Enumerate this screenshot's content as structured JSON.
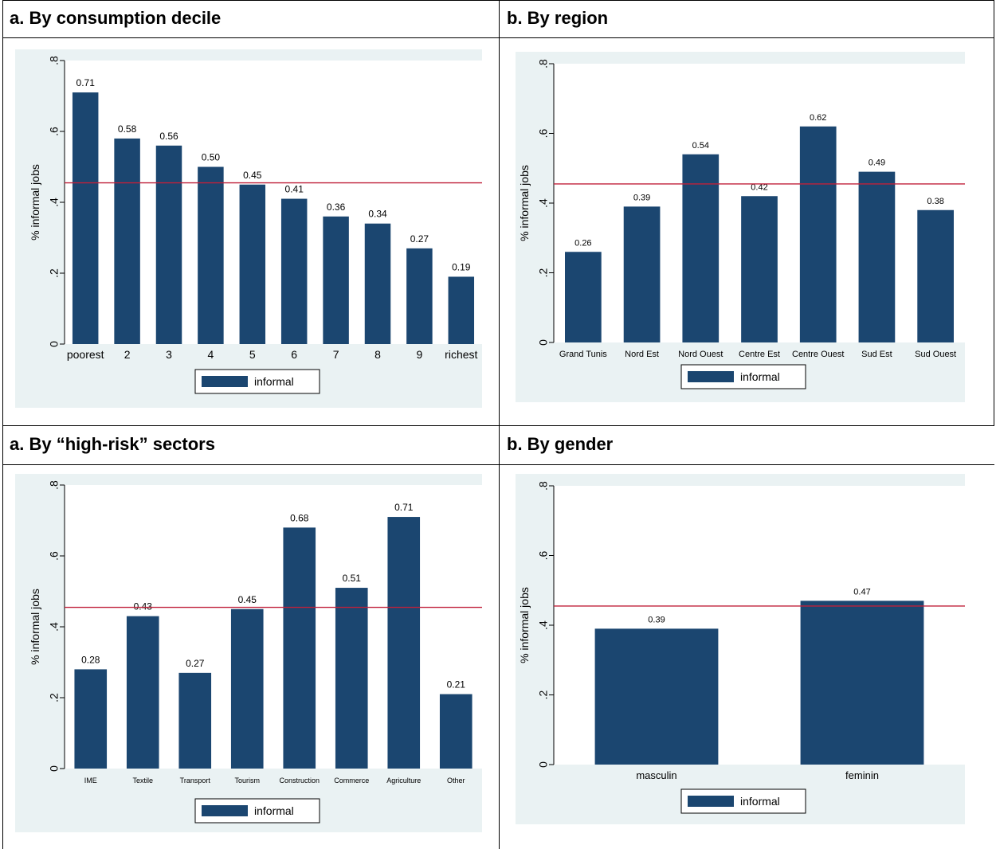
{
  "panels": [
    {
      "title": "a. By consumption decile"
    },
    {
      "title": "b. By region"
    },
    {
      "title": "a. By “high-risk” sectors"
    },
    {
      "title": "b. By gender"
    }
  ],
  "colors": {
    "bar": "#1b4670",
    "refline": "#c0203a",
    "chart_bg": "#eaf2f3",
    "plot_bg": "#ffffff"
  },
  "chart_data": [
    {
      "type": "bar",
      "ylabel": "% informal jobs",
      "ylim": [
        0,
        0.8
      ],
      "yticks": [
        0,
        0.2,
        0.4,
        0.6,
        0.8
      ],
      "ytick_labels": [
        "0",
        ".2",
        ".4",
        ".6",
        ".8"
      ],
      "reference_line": 0.455,
      "categories": [
        "poorest",
        "2",
        "3",
        "4",
        "5",
        "6",
        "7",
        "8",
        "9",
        "richest"
      ],
      "values": [
        0.71,
        0.58,
        0.56,
        0.5,
        0.45,
        0.41,
        0.36,
        0.34,
        0.27,
        0.19
      ],
      "value_labels": [
        "0.71",
        "0.58",
        "0.56",
        "0.50",
        "0.45",
        "0.41",
        "0.36",
        "0.34",
        "0.27",
        "0.19"
      ],
      "legend": "informal"
    },
    {
      "type": "bar",
      "ylabel": "% informal jobs",
      "ylim": [
        0,
        0.8
      ],
      "yticks": [
        0,
        0.2,
        0.4,
        0.6,
        0.8
      ],
      "ytick_labels": [
        "0",
        ".2",
        ".4",
        ".6",
        ".8"
      ],
      "reference_line": 0.455,
      "categories": [
        "Grand Tunis",
        "Nord Est",
        "Nord Ouest",
        "Centre Est",
        "Centre Ouest",
        "Sud Est",
        "Sud Ouest"
      ],
      "values": [
        0.26,
        0.39,
        0.54,
        0.42,
        0.62,
        0.49,
        0.38
      ],
      "value_labels": [
        "0.26",
        "0.39",
        "0.54",
        "0.42",
        "0.62",
        "0.49",
        "0.38"
      ],
      "legend": "informal"
    },
    {
      "type": "bar",
      "ylabel": "% informal jobs",
      "ylim": [
        0,
        0.8
      ],
      "yticks": [
        0,
        0.2,
        0.4,
        0.6,
        0.8
      ],
      "ytick_labels": [
        "0",
        ".2",
        ".4",
        ".6",
        ".8"
      ],
      "reference_line": 0.455,
      "categories": [
        "IME",
        "Textile",
        "Transport",
        "Tourism",
        "Construction",
        "Commerce",
        "Agriculture",
        "Other"
      ],
      "values": [
        0.28,
        0.43,
        0.27,
        0.45,
        0.68,
        0.51,
        0.71,
        0.21
      ],
      "value_labels": [
        "0.28",
        "0.43",
        "0.27",
        "0.45",
        "0.68",
        "0.51",
        "0.71",
        "0.21"
      ],
      "legend": "informal"
    },
    {
      "type": "bar",
      "ylabel": "% informal jobs",
      "ylim": [
        0,
        0.8
      ],
      "yticks": [
        0,
        0.2,
        0.4,
        0.6,
        0.8
      ],
      "ytick_labels": [
        "0",
        ".2",
        ".4",
        ".6",
        ".8"
      ],
      "reference_line": 0.455,
      "categories": [
        "masculin",
        "feminin"
      ],
      "values": [
        0.39,
        0.47
      ],
      "value_labels": [
        "0.39",
        "0.47"
      ],
      "legend": "informal"
    }
  ]
}
